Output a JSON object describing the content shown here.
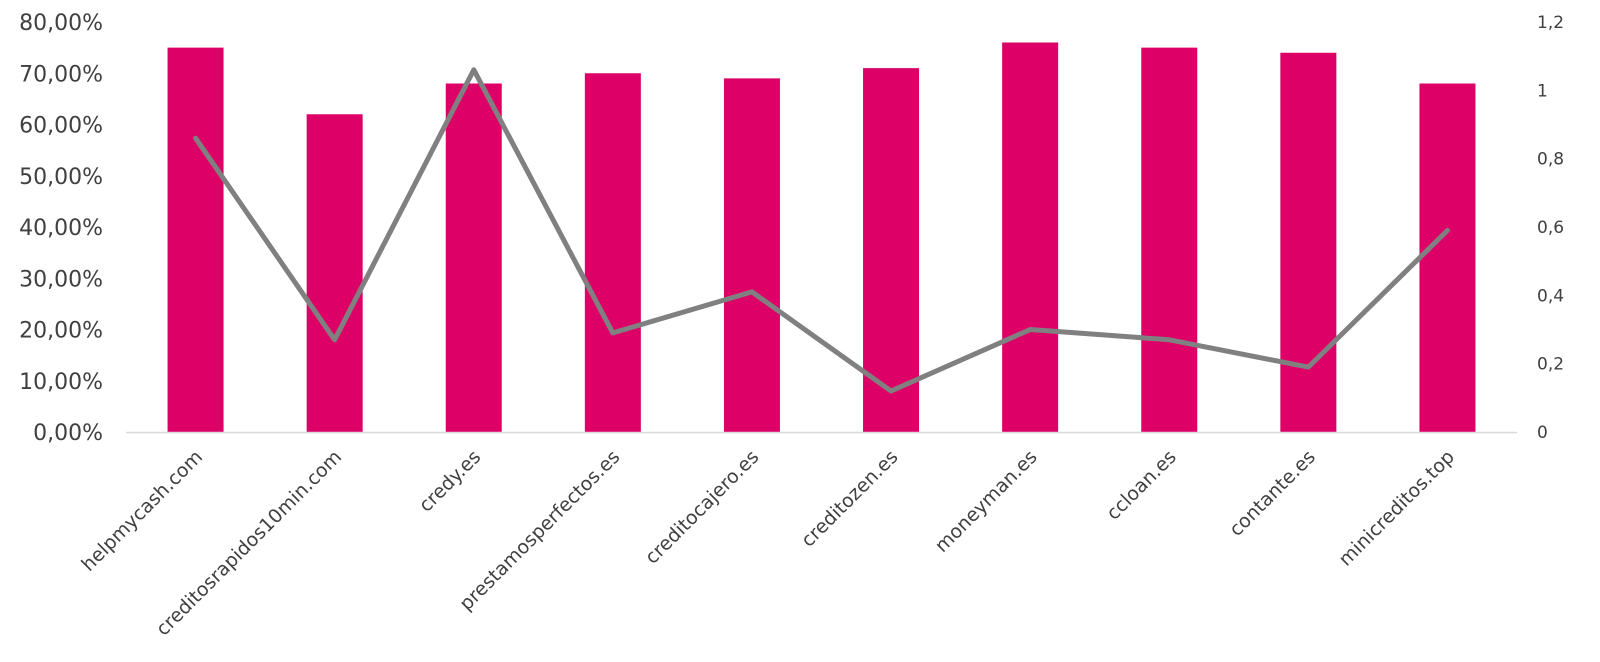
{
  "chart_data": {
    "type": "bar",
    "title": "",
    "xlabel": "",
    "ylabel": "",
    "categories": [
      "helpmycash.com",
      "creditosrapidos10min.com",
      "credy.es",
      "prestamosperfectos.es",
      "creditocajero.es",
      "creditozen.es",
      "moneyman.es",
      "ccloan.es",
      "contante.es",
      "minicreditos.top"
    ],
    "series": [
      {
        "type": "bar",
        "axis": "left",
        "color": "#DC0067",
        "values": [
          0.75,
          0.62,
          0.68,
          0.7,
          0.69,
          0.71,
          0.76,
          0.75,
          0.74,
          0.68
        ]
      },
      {
        "type": "line",
        "axis": "right",
        "color": "#808080",
        "values": [
          0.86,
          0.27,
          1.06,
          0.29,
          0.41,
          0.12,
          0.3,
          0.27,
          0.19,
          0.59
        ]
      }
    ],
    "ylim": [
      0,
      0.8
    ],
    "y2lim": [
      0,
      1.2
    ],
    "yticks": [
      "0,00%",
      "10,00%",
      "20,00%",
      "30,00%",
      "40,00%",
      "50,00%",
      "60,00%",
      "70,00%",
      "80,00%"
    ],
    "y2ticks": [
      "0",
      "0,2",
      "0,4",
      "0,6",
      "0,8",
      "1",
      "1,2"
    ],
    "grid": false,
    "legend": "none"
  }
}
